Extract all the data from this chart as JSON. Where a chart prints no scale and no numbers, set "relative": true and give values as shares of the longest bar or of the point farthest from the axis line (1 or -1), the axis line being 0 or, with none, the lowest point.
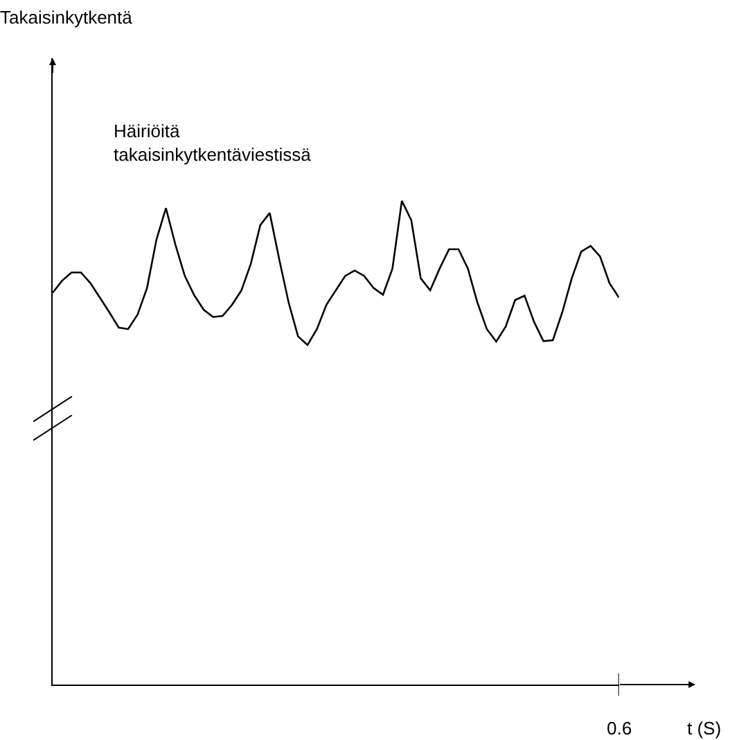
{
  "chart_data": {
    "type": "line",
    "relative": true,
    "xlabel": "t (S)",
    "annotations": [
      "Takaisinkytkentä",
      "Häiriöitä\ntakaisinkytkentäviestissä",
      "0.6"
    ],
    "categories": [
      null,
      null,
      null,
      null,
      null,
      null,
      null,
      null,
      null,
      null,
      null,
      null,
      null,
      null,
      null,
      null,
      null,
      null,
      null,
      null,
      null,
      null,
      null,
      null,
      null,
      null,
      null,
      null,
      null,
      null,
      null,
      null,
      null,
      null,
      null,
      null,
      null,
      null,
      null,
      null,
      null,
      null,
      null,
      null,
      null,
      null,
      null,
      null,
      null,
      null,
      null,
      null,
      null,
      null,
      null,
      null,
      null,
      null,
      null,
      null,
      null
    ],
    "series": [
      {
        "color": "#000000",
        "values": [
          0.81,
          0.835,
          0.852,
          0.852,
          0.83,
          0.8,
          0.77,
          0.738,
          0.735,
          0.765,
          0.82,
          0.92,
          0.985,
          0.91,
          0.845,
          0.805,
          0.775,
          0.76,
          0.762,
          0.785,
          0.815,
          0.87,
          0.95,
          0.975,
          0.88,
          0.79,
          0.72,
          0.702,
          0.735,
          0.785,
          0.815,
          0.845,
          0.856,
          0.845,
          0.82,
          0.806,
          0.86,
          1.0,
          0.96,
          0.84,
          0.815,
          0.86,
          0.9,
          0.9,
          0.86,
          0.79,
          0.735,
          0.709,
          0.74,
          0.795,
          0.804,
          0.75,
          0.71,
          0.712,
          0.77,
          0.84,
          0.895,
          0.907,
          0.885,
          0.83,
          0.8
        ]
      }
    ],
    "marker": "none",
    "line_style": "solid"
  }
}
